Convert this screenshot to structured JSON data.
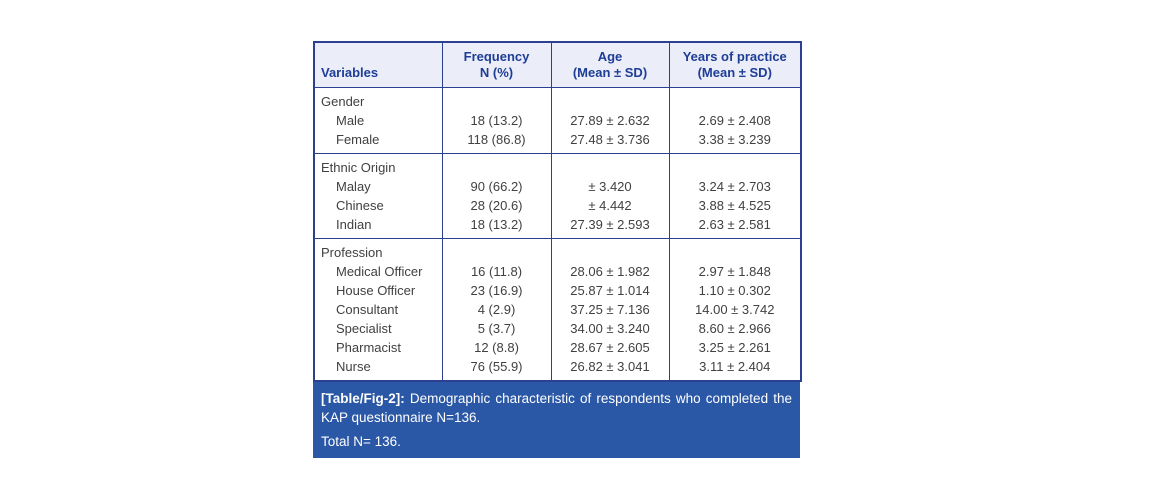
{
  "colors": {
    "border_navy": "#2b4090",
    "header_background": "#ebeef8",
    "header_text": "#1e3d96",
    "caption_background": "#2a57a6",
    "caption_text": "#ffffff",
    "body_text": "#414042",
    "page_background": "#ffffff"
  },
  "table": {
    "headers": [
      {
        "title": "Variables",
        "subtitle": ""
      },
      {
        "title": "Frequency",
        "subtitle": "N (%)"
      },
      {
        "title": "Age",
        "subtitle": "(Mean ± SD)"
      },
      {
        "title": "Years of practice",
        "subtitle": "(Mean ± SD)"
      }
    ],
    "sections": [
      {
        "label": "Gender",
        "rows": [
          {
            "variable": "Male",
            "frequency": "18 (13.2)",
            "age": "27.89 ± 2.632",
            "years": "2.69 ± 2.408"
          },
          {
            "variable": "Female",
            "frequency": "118 (86.8)",
            "age": "27.48 ± 3.736",
            "years": "3.38 ± 3.239"
          }
        ]
      },
      {
        "label": "Ethnic Origin",
        "rows": [
          {
            "variable": "Malay",
            "frequency": "90 (66.2)",
            "age": "± 3.420",
            "years": "3.24 ± 2.703"
          },
          {
            "variable": "Chinese",
            "frequency": "28 (20.6)",
            "age": "± 4.442",
            "years": "3.88 ± 4.525"
          },
          {
            "variable": "Indian",
            "frequency": "18 (13.2)",
            "age": "27.39 ± 2.593",
            "years": "2.63 ± 2.581"
          }
        ]
      },
      {
        "label": "Profession",
        "rows": [
          {
            "variable": "Medical Officer",
            "frequency": "16 (11.8)",
            "age": "28.06 ± 1.982",
            "years": "2.97 ± 1.848"
          },
          {
            "variable": "House Officer",
            "frequency": "23 (16.9)",
            "age": "25.87 ± 1.014",
            "years": "1.10 ± 0.302"
          },
          {
            "variable": "Consultant",
            "frequency": "4 (2.9)",
            "age": "37.25 ± 7.136",
            "years": "14.00 ± 3.742"
          },
          {
            "variable": "Specialist",
            "frequency": "5 (3.7)",
            "age": "34.00 ± 3.240",
            "years": "8.60 ± 2.966"
          },
          {
            "variable": "Pharmacist",
            "frequency": "12 (8.8)",
            "age": "28.67 ± 2.605",
            "years": "3.25 ± 2.261"
          },
          {
            "variable": "Nurse",
            "frequency": "76 (55.9)",
            "age": "26.82 ± 3.041",
            "years": "3.11 ± 2.404"
          }
        ]
      }
    ]
  },
  "caption": {
    "tag": "[Table/Fig-2]:",
    "text": "Demographic characteristic of respondents who completed the KAP questionnaire N=136.",
    "note": "Total N= 136."
  }
}
